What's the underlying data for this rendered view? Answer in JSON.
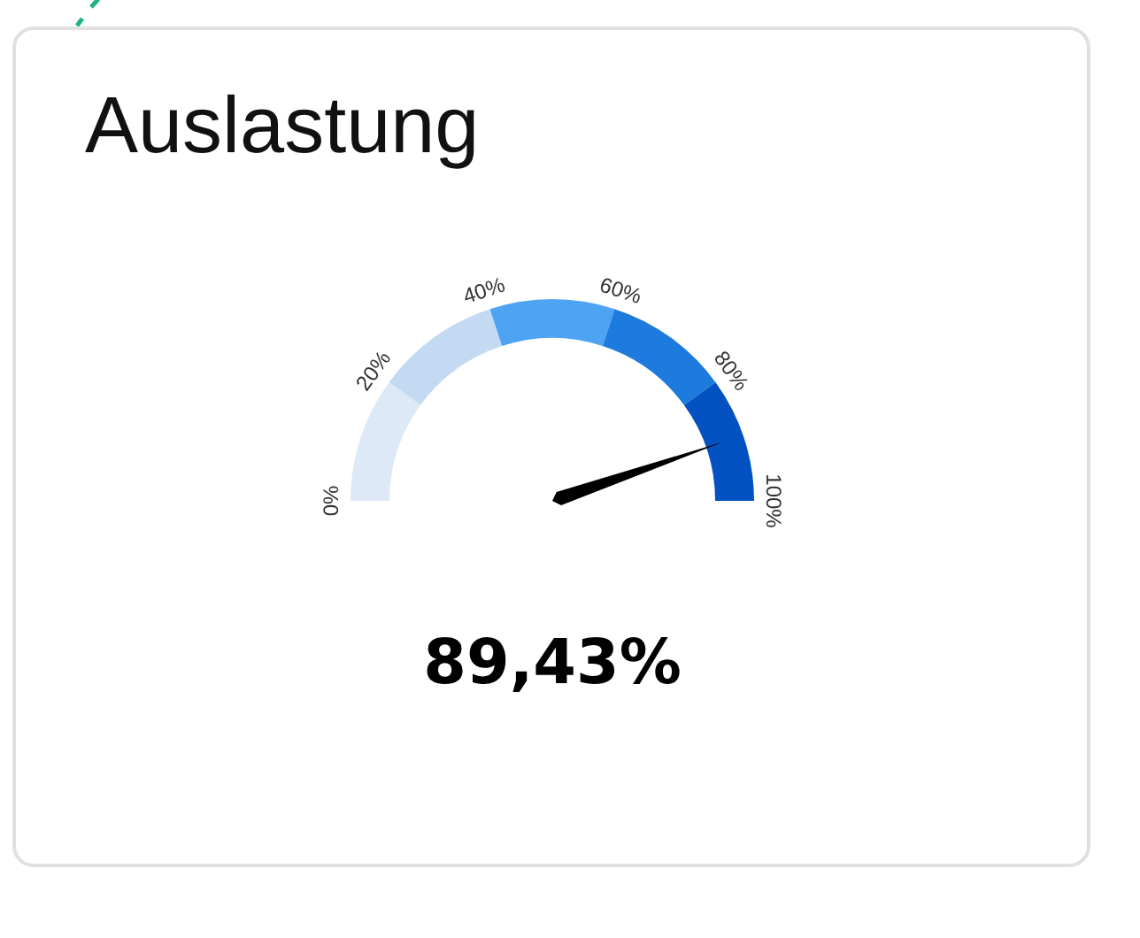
{
  "chart_data": {
    "type": "other",
    "title": "Auslastung",
    "values": [
      89.43
    ],
    "value_labels": [
      "89,43%"
    ],
    "annotations": [
      "0%",
      "20%",
      "40%",
      "60%",
      "80%",
      "100%"
    ]
  }
}
